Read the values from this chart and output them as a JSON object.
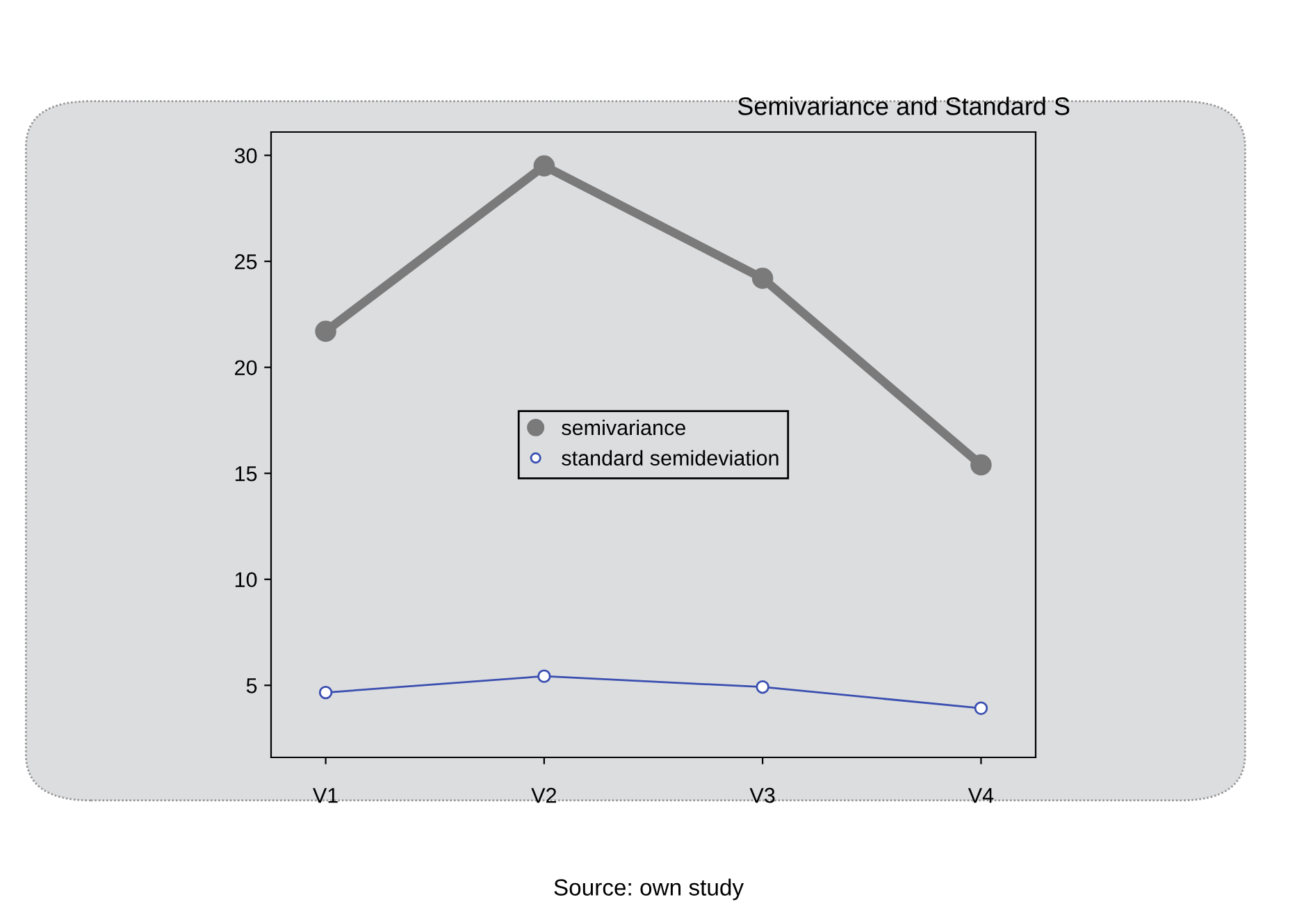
{
  "chart_data": {
    "type": "line",
    "title": "Semivariance and Standard S",
    "categories": [
      "V1",
      "V2",
      "V3",
      "V4"
    ],
    "series": [
      {
        "name": "semivariance",
        "color": "#7a7a7a",
        "values": [
          21.7,
          29.5,
          24.2,
          15.4
        ],
        "marker": "circle"
      },
      {
        "name": "standard semideviation",
        "color": "#3a4fb0",
        "values": [
          4.66,
          5.43,
          4.92,
          3.92
        ],
        "marker": "circle"
      }
    ],
    "ylim": [
      1.6,
      31.1
    ],
    "yticks": [
      5,
      10,
      15,
      20,
      25,
      30
    ],
    "grid": false,
    "legend": "center",
    "annotations": [
      "Source: own study"
    ]
  }
}
